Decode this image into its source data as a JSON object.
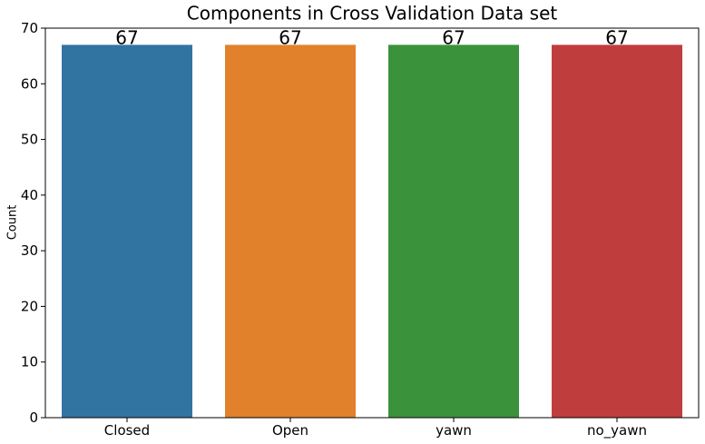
{
  "chart_data": {
    "type": "bar",
    "title": "Components in Cross Validation Data set",
    "xlabel": "",
    "ylabel": "Count",
    "categories": [
      "Closed",
      "Open",
      "yawn",
      "no_yawn"
    ],
    "values": [
      67,
      67,
      67,
      67
    ],
    "data_labels": [
      "67",
      "67",
      "67",
      "67"
    ],
    "colors": [
      "#3274a1",
      "#e1812c",
      "#3a923a",
      "#c03d3e"
    ],
    "ylim": [
      0,
      70
    ],
    "yticks": [
      0,
      10,
      20,
      30,
      40,
      50,
      60,
      70
    ],
    "grid": false,
    "legend": "none"
  }
}
